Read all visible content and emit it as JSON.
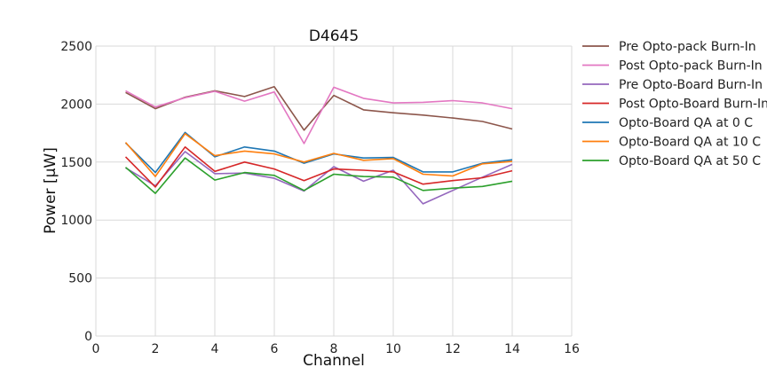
{
  "chart_data": {
    "type": "line",
    "title": "D4645",
    "xlabel": "Channel",
    "ylabel": "Power [μW]",
    "xlim": [
      0,
      16
    ],
    "ylim": [
      0,
      2500
    ],
    "xticks": [
      0,
      2,
      4,
      6,
      8,
      10,
      12,
      14,
      16
    ],
    "yticks": [
      0,
      500,
      1000,
      1500,
      2000,
      2500
    ],
    "grid": true,
    "legend_position": "outside-right",
    "x": [
      1,
      2,
      3,
      4,
      5,
      6,
      7,
      8,
      9,
      10,
      11,
      12,
      13,
      14
    ],
    "series": [
      {
        "name": "Pre Opto-pack Burn-In",
        "color": "#8c564b",
        "values": [
          2100,
          1960,
          2060,
          2115,
          2065,
          2150,
          1775,
          2075,
          1950,
          1925,
          1905,
          1880,
          1850,
          1785
        ]
      },
      {
        "name": "Post Opto-pack Burn-In",
        "color": "#e377c2",
        "values": [
          2115,
          1975,
          2055,
          2110,
          2025,
          2105,
          1660,
          2145,
          2050,
          2010,
          2015,
          2030,
          2010,
          1960
        ]
      },
      {
        "name": "Pre Opto-Board Burn-In",
        "color": "#9467bd",
        "values": [
          1450,
          1295,
          1590,
          1400,
          1405,
          1360,
          1250,
          1460,
          1335,
          1430,
          1140,
          1255,
          1370,
          1480
        ]
      },
      {
        "name": "Post Opto-Board Burn-In",
        "color": "#d62728",
        "values": [
          1545,
          1285,
          1630,
          1420,
          1500,
          1440,
          1340,
          1440,
          1430,
          1415,
          1310,
          1340,
          1365,
          1425
        ]
      },
      {
        "name": "Opto-Board QA at 0 C",
        "color": "#1f77b4",
        "values": [
          1665,
          1410,
          1755,
          1545,
          1630,
          1595,
          1490,
          1570,
          1535,
          1540,
          1415,
          1415,
          1490,
          1520
        ]
      },
      {
        "name": "Opto-Board QA at 10 C",
        "color": "#ff7f0e",
        "values": [
          1670,
          1375,
          1745,
          1555,
          1595,
          1570,
          1500,
          1575,
          1515,
          1530,
          1395,
          1380,
          1485,
          1505
        ]
      },
      {
        "name": "Opto-Board QA at 50 C",
        "color": "#2ca02c",
        "values": [
          1455,
          1230,
          1535,
          1345,
          1410,
          1385,
          1255,
          1395,
          1375,
          1370,
          1255,
          1275,
          1290,
          1335
        ]
      }
    ]
  }
}
